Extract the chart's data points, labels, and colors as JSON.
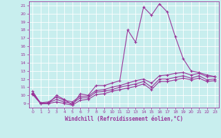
{
  "xlabel": "Windchill (Refroidissement éolien,°C)",
  "bg_color": "#c8eeee",
  "line_color": "#993399",
  "grid_color": "#ffffff",
  "x_values": [
    0,
    1,
    2,
    3,
    4,
    5,
    6,
    7,
    8,
    9,
    10,
    11,
    12,
    13,
    14,
    15,
    16,
    17,
    18,
    19,
    20,
    21,
    22,
    23
  ],
  "line1": [
    10.5,
    9.0,
    9.0,
    10.0,
    9.5,
    8.8,
    10.2,
    10.0,
    11.2,
    11.2,
    11.5,
    11.8,
    18.0,
    16.5,
    20.8,
    19.8,
    21.2,
    20.2,
    17.2,
    14.5,
    13.0,
    12.8,
    12.5,
    12.3
  ],
  "line2": [
    10.3,
    9.1,
    9.2,
    9.8,
    9.4,
    9.2,
    9.9,
    9.9,
    10.6,
    10.7,
    11.0,
    11.2,
    11.5,
    11.8,
    12.0,
    11.5,
    12.4,
    12.5,
    12.7,
    12.8,
    12.5,
    12.7,
    12.3,
    12.3
  ],
  "line3": [
    10.2,
    9.0,
    9.1,
    9.5,
    9.2,
    9.0,
    9.7,
    9.7,
    10.4,
    10.5,
    10.7,
    11.0,
    11.2,
    11.4,
    11.7,
    11.0,
    12.0,
    12.0,
    12.2,
    12.4,
    12.1,
    12.4,
    11.9,
    12.0
  ],
  "line4": [
    10.1,
    9.0,
    9.0,
    9.2,
    9.0,
    8.8,
    9.4,
    9.5,
    10.1,
    10.2,
    10.5,
    10.7,
    10.9,
    11.1,
    11.4,
    10.7,
    11.7,
    11.7,
    11.9,
    12.1,
    11.9,
    12.1,
    11.7,
    11.8
  ],
  "ylim": [
    8.5,
    21.5
  ],
  "xlim": [
    -0.5,
    23.5
  ],
  "yticks": [
    9,
    10,
    11,
    12,
    13,
    14,
    15,
    16,
    17,
    18,
    19,
    20,
    21
  ],
  "xticks": [
    0,
    1,
    2,
    3,
    4,
    5,
    6,
    7,
    8,
    9,
    10,
    11,
    12,
    13,
    14,
    15,
    16,
    17,
    18,
    19,
    20,
    21,
    22,
    23
  ],
  "tick_fontsize": 4.5,
  "label_fontsize": 5.5,
  "marker": "+"
}
